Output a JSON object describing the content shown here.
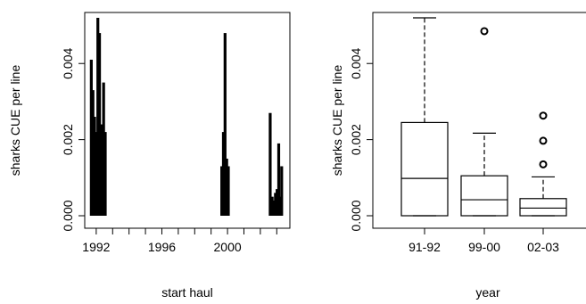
{
  "chart_data": [
    {
      "type": "bar",
      "xlabel": "start haul",
      "ylabel": "sharks CUE per line",
      "xlim": [
        1991.3,
        2003.8
      ],
      "ylim": [
        0,
        0.0052
      ],
      "x_ticks": [
        1992,
        1996,
        2000
      ],
      "x_tick_labels": [
        "1992",
        "1996",
        "2000"
      ],
      "y_ticks": [
        0,
        0.002,
        0.004
      ],
      "y_tick_labels": [
        "0.000",
        "0.002",
        "0.004"
      ],
      "bars": [
        {
          "x": 1991.7,
          "y": 0.0041
        },
        {
          "x": 1991.8,
          "y": 0.0033
        },
        {
          "x": 1991.9,
          "y": 0.0026
        },
        {
          "x": 1992.0,
          "y": 0.0022
        },
        {
          "x": 1992.1,
          "y": 0.0052
        },
        {
          "x": 1992.2,
          "y": 0.0048
        },
        {
          "x": 1992.3,
          "y": 0.0024
        },
        {
          "x": 1992.45,
          "y": 0.0035
        },
        {
          "x": 1992.55,
          "y": 0.0022
        },
        {
          "x": 1999.65,
          "y": 0.0013
        },
        {
          "x": 1999.75,
          "y": 0.0022
        },
        {
          "x": 1999.85,
          "y": 0.0048
        },
        {
          "x": 1999.95,
          "y": 0.0015
        },
        {
          "x": 2000.05,
          "y": 0.0013
        },
        {
          "x": 2002.6,
          "y": 0.0027
        },
        {
          "x": 2002.72,
          "y": 0.0005
        },
        {
          "x": 2002.82,
          "y": 0.0004
        },
        {
          "x": 2002.92,
          "y": 0.0006
        },
        {
          "x": 2003.02,
          "y": 0.0007
        },
        {
          "x": 2003.12,
          "y": 0.0019
        },
        {
          "x": 2003.2,
          "y": 0.0005
        },
        {
          "x": 2003.3,
          "y": 0.0013
        }
      ]
    },
    {
      "type": "box",
      "xlabel": "year",
      "ylabel": "sharks CUE per line",
      "ylim": [
        0,
        0.0052
      ],
      "y_ticks": [
        0,
        0.002,
        0.004
      ],
      "y_tick_labels": [
        "0.000",
        "0.002",
        "0.004"
      ],
      "categories": [
        "91-92",
        "99-00",
        "02-03"
      ],
      "boxes": [
        {
          "min": 0.0,
          "q1": 0.0,
          "median": 0.00098,
          "q3": 0.00245,
          "max": 0.0052,
          "outliers": []
        },
        {
          "min": 0.0,
          "q1": 0.0,
          "median": 0.00042,
          "q3": 0.00105,
          "max": 0.00217,
          "outliers": [
            0.00485
          ]
        },
        {
          "min": 0.0,
          "q1": 0.0,
          "median": 0.0002,
          "q3": 0.00045,
          "max": 0.00102,
          "outliers": [
            0.00135,
            0.00197,
            0.00263
          ]
        }
      ]
    }
  ]
}
